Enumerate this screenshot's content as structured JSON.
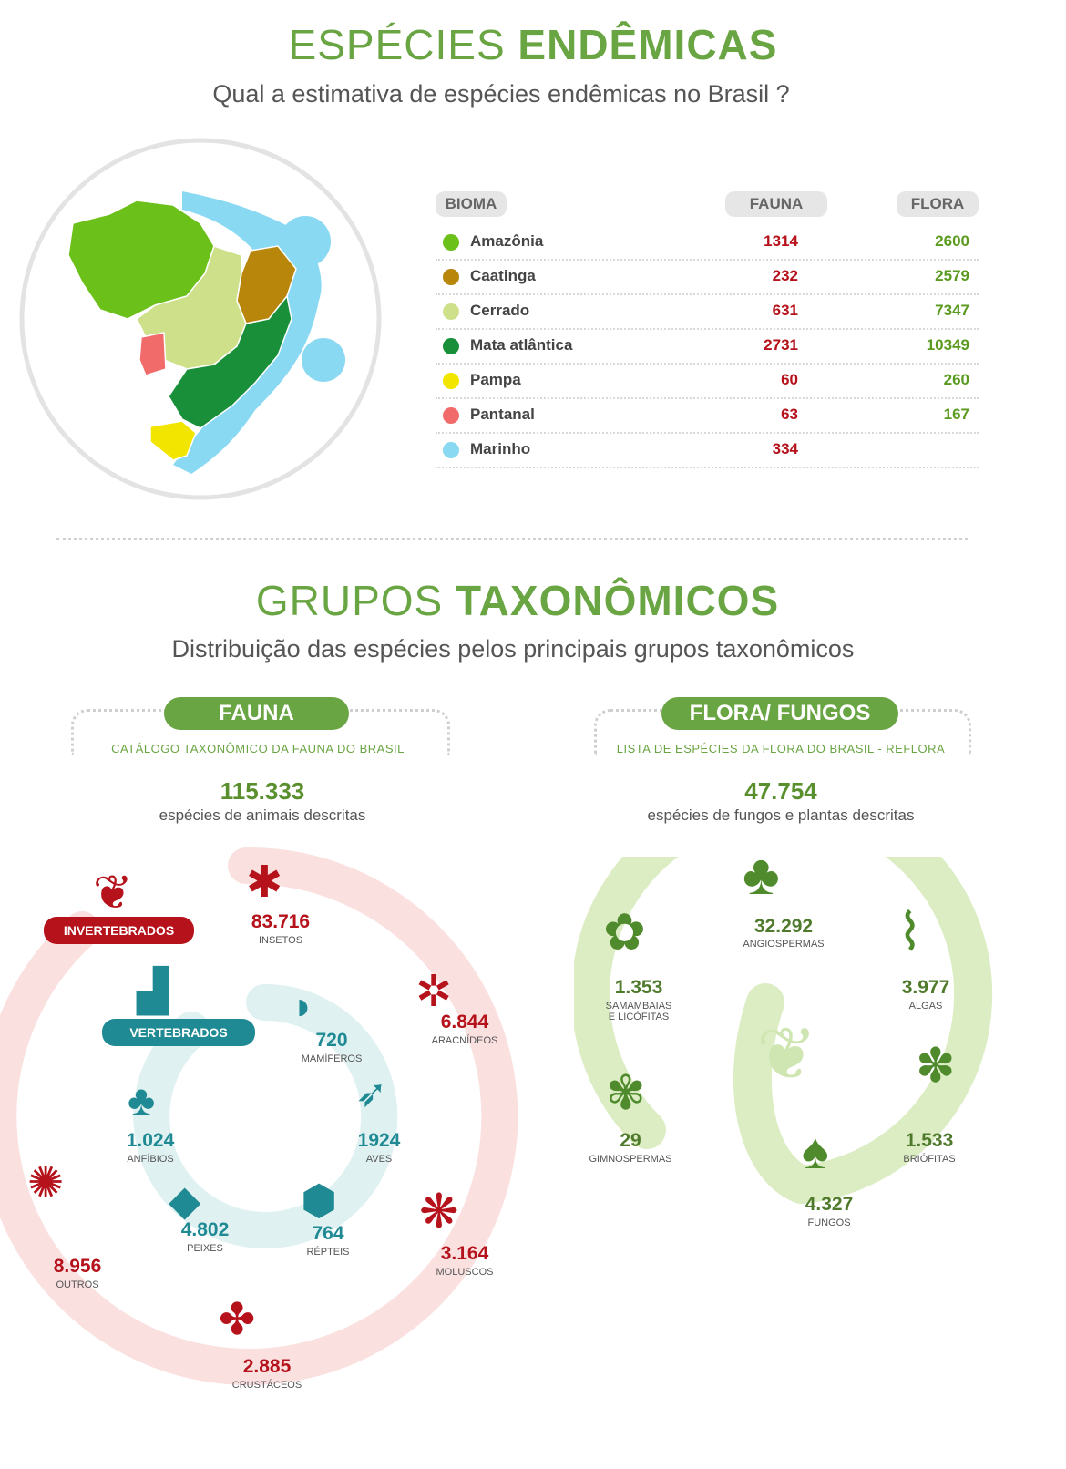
{
  "endemic": {
    "title_light": "ESPÉCIES",
    "title_bold": "ENDÊMICAS",
    "subtitle": "Qual a estimativa de espécies endêmicas no Brasil ?",
    "headers": {
      "bioma": "BIOMA",
      "fauna": "FAUNA",
      "flora": "FLORA"
    },
    "rows": [
      {
        "name": "Amazônia",
        "color": "#6cc01a",
        "fauna": "1314",
        "flora": "2600"
      },
      {
        "name": "Caatinga",
        "color": "#b8860b",
        "fauna": "232",
        "flora": "2579"
      },
      {
        "name": "Cerrado",
        "color": "#cfe08a",
        "fauna": "631",
        "flora": "7347"
      },
      {
        "name": "Mata atlântica",
        "color": "#1a8f3a",
        "fauna": "2731",
        "flora": "10349"
      },
      {
        "name": "Pampa",
        "color": "#f2e600",
        "fauna": "60",
        "flora": "260"
      },
      {
        "name": "Pantanal",
        "color": "#f26b6b",
        "fauna": "63",
        "flora": "167"
      },
      {
        "name": "Marinho",
        "color": "#8ad9f2",
        "fauna": "334",
        "flora": ""
      }
    ]
  },
  "taxo": {
    "title_light": "GRUPOS",
    "title_bold": "TAXONÔMICOS",
    "subtitle": "Distribuição das espécies pelos principais grupos taxonômicos"
  },
  "fauna": {
    "pill": "FAUNA",
    "source": "CATÁLOGO TAXONÔMICO DA FAUNA DO BRASIL",
    "total": "115.333",
    "total_desc": "espécies de animais descritas",
    "invert_tag": "INVERTEBRADOS",
    "vert_tag": "VERTEBRADOS",
    "insetos": {
      "value": "83.716",
      "label": "INSETOS"
    },
    "aracnideos": {
      "value": "6.844",
      "label": "ARACNÍDEOS"
    },
    "moluscos": {
      "value": "3.164",
      "label": "MOLUSCOS"
    },
    "crustaceos": {
      "value": "2.885",
      "label": "CRUSTÁCEOS"
    },
    "outros": {
      "value": "8.956",
      "label": "OUTROS"
    },
    "mamiferos": {
      "value": "720",
      "label": "MAMÍFEROS"
    },
    "aves": {
      "value": "1924",
      "label": "AVES"
    },
    "repteis": {
      "value": "764",
      "label": "RÉPTEIS"
    },
    "peixes": {
      "value": "4.802",
      "label": "PEIXES"
    },
    "anfibios": {
      "value": "1.024",
      "label": "ANFÍBIOS"
    }
  },
  "flora": {
    "pill": "FLORA/ FUNGOS",
    "source": "LISTA DE ESPÉCIES DA FLORA DO BRASIL - REFLORA",
    "total": "47.754",
    "total_desc": "espécies de fungos e plantas descritas",
    "angiospermas": {
      "value": "32.292",
      "label": "ANGIOSPERMAS"
    },
    "algas": {
      "value": "3.977",
      "label": "ALGAS"
    },
    "briofitas": {
      "value": "1.533",
      "label": "BRIÓFITAS"
    },
    "fungos": {
      "value": "4.327",
      "label": "FUNGOS"
    },
    "gimnospermas": {
      "value": "29",
      "label": "GIMNOSPERMAS"
    },
    "samambaias": {
      "value": "1.353",
      "label1": "SAMAMBAIAS",
      "label2": "E LICÓFITAS"
    }
  }
}
